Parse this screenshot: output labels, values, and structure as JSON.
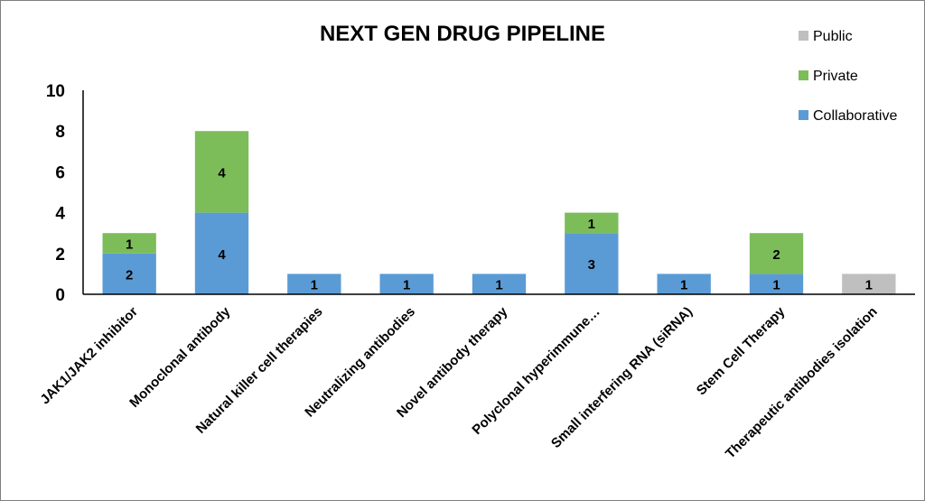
{
  "chart_data": {
    "type": "bar",
    "stacked": true,
    "title": "NEXT GEN DRUG PIPELINE",
    "xlabel": "",
    "ylabel": "",
    "ylim": [
      0,
      10
    ],
    "yticks": [
      0,
      2,
      4,
      6,
      8,
      10
    ],
    "grid": false,
    "legend_position": "top-right",
    "categories": [
      "JAK1/JAK2 inhibitor",
      "Monoclonal antibody",
      "Natural killer cell therapies",
      "Neutralizing antibodies",
      "Novel antibody therapy",
      "Polyclonal hyperimmune…",
      "Small interfering RNA (siRNA)",
      "Stem Cell Therapy",
      "Therapeutic antibodies isolation"
    ],
    "series": [
      {
        "name": "Collaborative",
        "color": "#5b9bd5",
        "values": [
          2,
          4,
          1,
          1,
          1,
          3,
          1,
          1,
          0
        ]
      },
      {
        "name": "Private",
        "color": "#7cbd5a",
        "values": [
          1,
          4,
          0,
          0,
          0,
          1,
          0,
          2,
          0
        ]
      },
      {
        "name": "Public",
        "color": "#bfbfbf",
        "values": [
          0,
          0,
          0,
          0,
          0,
          0,
          0,
          0,
          1
        ]
      }
    ],
    "legend_order": [
      "Public",
      "Private",
      "Collaborative"
    ]
  }
}
